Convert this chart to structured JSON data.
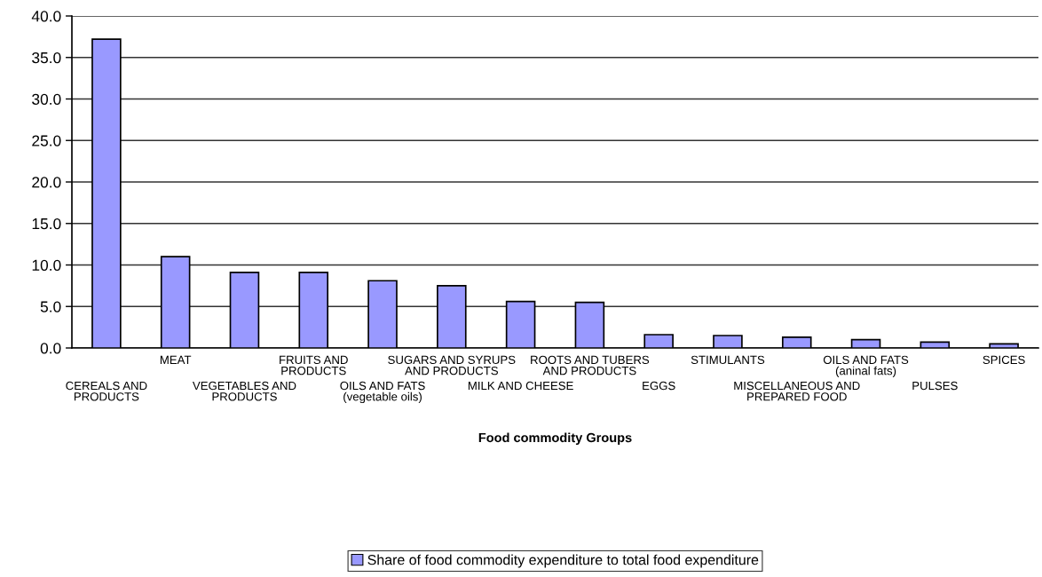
{
  "chart_data": {
    "type": "bar",
    "categories": [
      "CEREALS AND PRODUCTS",
      "MEAT",
      "VEGETABLES AND PRODUCTS",
      "FRUITS AND PRODUCTS",
      "OILS AND FATS (vegetable oils)",
      "SUGARS AND SYRUPS AND PRODUCTS",
      "MILK AND CHEESE",
      "ROOTS AND TUBERS AND PRODUCTS",
      "EGGS",
      "STIMULANTS",
      "MISCELLANEOUS AND PREPARED FOOD",
      "OILS AND FATS (aninal fats)",
      "PULSES",
      "SPICES"
    ],
    "series": [
      {
        "name": "Share of food commodity expenditure to total food expenditure",
        "color": "#9999ff",
        "values": [
          37.2,
          11.0,
          9.1,
          9.1,
          8.1,
          7.5,
          5.6,
          5.5,
          1.6,
          1.5,
          1.3,
          1.0,
          0.7,
          0.5
        ]
      }
    ],
    "xlabel": "Food commodity Groups",
    "ylim": [
      0,
      40
    ],
    "yticks": [
      {
        "value": 0,
        "label": "0.0"
      },
      {
        "value": 5,
        "label": "5.0"
      },
      {
        "value": 10,
        "label": "10.0"
      },
      {
        "value": 15,
        "label": "15.0"
      },
      {
        "value": 20,
        "label": "20.0"
      },
      {
        "value": 25,
        "label": "25.0"
      },
      {
        "value": 30,
        "label": "30.0"
      },
      {
        "value": 35,
        "label": "35.0"
      },
      {
        "value": 40,
        "label": "40.0"
      }
    ],
    "grid": "y",
    "legend": "bottom"
  }
}
